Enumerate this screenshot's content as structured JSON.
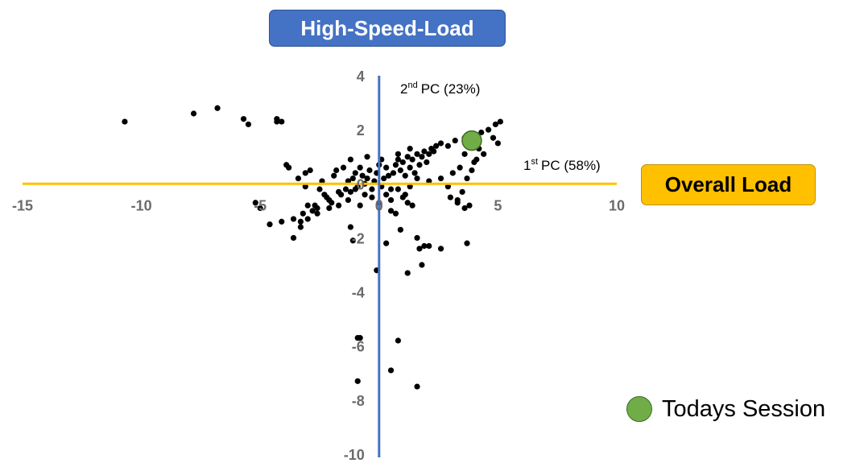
{
  "chart_data": {
    "type": "scatter",
    "title_box": "High-Speed-Load",
    "x_box": "Overall Load",
    "x_axis": {
      "pc": "1",
      "sup": "st",
      "label": "PC (58%)",
      "ticks": [
        -15,
        -10,
        -5,
        0,
        5,
        10
      ],
      "range": [
        -15,
        10
      ]
    },
    "y_axis": {
      "pc": "2",
      "sup": "nd",
      "label": "PC (23%)",
      "ticks": [
        4,
        2,
        0,
        -2,
        -4,
        -6,
        -8,
        -10
      ],
      "range": [
        -10,
        4
      ]
    },
    "grid": false,
    "colors": {
      "x_axis": "#ffc000",
      "y_axis": "#4472c4",
      "points": "#000000",
      "highlight": "#70ad47"
    },
    "series": [
      {
        "points": [
          [
            -10.7,
            2.3
          ],
          [
            -7.8,
            2.6
          ],
          [
            -6.8,
            2.8
          ],
          [
            -5.7,
            2.4
          ],
          [
            -5.5,
            2.2
          ],
          [
            -4.3,
            2.4
          ],
          [
            -4.3,
            2.3
          ],
          [
            -4.1,
            2.3
          ],
          [
            -3.9,
            0.7
          ],
          [
            -3.8,
            0.6
          ],
          [
            -3.6,
            -1.3
          ],
          [
            -3.6,
            -2.0
          ],
          [
            -3.4,
            0.2
          ],
          [
            -3.3,
            -1.4
          ],
          [
            -3.2,
            -1.1
          ],
          [
            -3.1,
            0.4
          ],
          [
            -3.1,
            -0.1
          ],
          [
            -3.0,
            -0.8
          ],
          [
            -2.9,
            0.5
          ],
          [
            -2.8,
            -1.0
          ],
          [
            -2.7,
            -0.8
          ],
          [
            -2.6,
            -0.9
          ],
          [
            -2.5,
            -0.2
          ],
          [
            -2.4,
            0.1
          ],
          [
            -2.3,
            -0.4
          ],
          [
            -2.2,
            -0.5
          ],
          [
            -2.1,
            -0.6
          ],
          [
            -2.0,
            -0.7
          ],
          [
            -1.9,
            0.3
          ],
          [
            -1.8,
            0.5
          ],
          [
            -1.7,
            -0.3
          ],
          [
            -1.6,
            -0.4
          ],
          [
            -1.5,
            0.6
          ],
          [
            -1.4,
            -0.2
          ],
          [
            -1.3,
            0.1
          ],
          [
            -1.2,
            -0.3
          ],
          [
            -1.1,
            0.2
          ],
          [
            -1.0,
            0.4
          ],
          [
            -0.9,
            -0.1
          ],
          [
            -0.8,
            0.6
          ],
          [
            -0.7,
            0.3
          ],
          [
            -0.6,
            0.0
          ],
          [
            -0.5,
            0.2
          ],
          [
            -0.4,
            0.5
          ],
          [
            -0.3,
            -0.2
          ],
          [
            -0.2,
            0.1
          ],
          [
            -0.1,
            0.4
          ],
          [
            0.0,
            0.7
          ],
          [
            0.1,
            -0.1
          ],
          [
            0.2,
            0.2
          ],
          [
            0.3,
            0.6
          ],
          [
            0.4,
            0.3
          ],
          [
            0.5,
            -0.2
          ],
          [
            0.6,
            0.4
          ],
          [
            0.7,
            0.7
          ],
          [
            0.8,
            0.9
          ],
          [
            0.9,
            0.5
          ],
          [
            1.0,
            0.8
          ],
          [
            1.1,
            0.3
          ],
          [
            1.2,
            1.0
          ],
          [
            1.3,
            0.6
          ],
          [
            1.4,
            0.9
          ],
          [
            1.5,
            0.4
          ],
          [
            1.6,
            1.1
          ],
          [
            1.7,
            0.7
          ],
          [
            1.8,
            1.0
          ],
          [
            1.9,
            1.2
          ],
          [
            2.0,
            0.8
          ],
          [
            2.1,
            1.1
          ],
          [
            2.2,
            1.3
          ],
          [
            2.3,
            1.2
          ],
          [
            2.4,
            1.4
          ],
          [
            -1.2,
            0.9
          ],
          [
            -0.5,
            1.0
          ],
          [
            0.1,
            0.9
          ],
          [
            0.8,
            1.1
          ],
          [
            1.3,
            1.3
          ],
          [
            2.6,
            1.5
          ],
          [
            2.9,
            1.4
          ],
          [
            3.2,
            1.6
          ],
          [
            3.6,
            1.7
          ],
          [
            3.8,
            1.5
          ],
          [
            4.1,
            1.8
          ],
          [
            4.3,
            1.9
          ],
          [
            4.6,
            2.0
          ],
          [
            4.9,
            2.2
          ],
          [
            5.1,
            2.3
          ],
          [
            4.8,
            1.7
          ],
          [
            5.0,
            1.5
          ],
          [
            4.2,
            1.3
          ],
          [
            4.4,
            1.1
          ],
          [
            4.1,
            0.9
          ],
          [
            3.6,
            1.1
          ],
          [
            3.4,
            0.6
          ],
          [
            3.1,
            0.4
          ],
          [
            3.0,
            -0.5
          ],
          [
            3.3,
            -0.6
          ],
          [
            3.5,
            -0.3
          ],
          [
            3.7,
            0.2
          ],
          [
            3.9,
            0.5
          ],
          [
            4.0,
            0.8
          ],
          [
            3.8,
            -0.8
          ],
          [
            3.6,
            -0.9
          ],
          [
            3.3,
            -0.7
          ],
          [
            2.9,
            -0.1
          ],
          [
            2.6,
            0.2
          ],
          [
            2.1,
            0.1
          ],
          [
            1.6,
            0.2
          ],
          [
            1.3,
            -0.1
          ],
          [
            1.1,
            -0.4
          ],
          [
            0.8,
            -0.2
          ],
          [
            0.5,
            -0.6
          ],
          [
            0.3,
            -0.4
          ],
          [
            0.0,
            -0.7
          ],
          [
            -0.3,
            -0.5
          ],
          [
            -0.6,
            -0.4
          ],
          [
            -0.8,
            -0.8
          ],
          [
            -1.0,
            -0.2
          ],
          [
            -1.3,
            -0.6
          ],
          [
            -1.7,
            -0.8
          ],
          [
            -2.1,
            -0.9
          ],
          [
            -2.6,
            -1.1
          ],
          [
            -3.0,
            -1.3
          ],
          [
            -3.3,
            -1.6
          ],
          [
            -4.1,
            -1.4
          ],
          [
            -4.6,
            -1.5
          ],
          [
            -5.2,
            -0.7
          ],
          [
            -5.0,
            -0.9
          ],
          [
            -1.2,
            -1.6
          ],
          [
            -1.1,
            -2.1
          ],
          [
            0.3,
            -2.2
          ],
          [
            0.5,
            -1.0
          ],
          [
            0.7,
            -1.1
          ],
          [
            0.9,
            -1.7
          ],
          [
            1.0,
            -0.5
          ],
          [
            1.2,
            -0.7
          ],
          [
            1.4,
            -0.8
          ],
          [
            1.6,
            -2.0
          ],
          [
            1.7,
            -2.4
          ],
          [
            1.9,
            -2.3
          ],
          [
            2.1,
            -2.3
          ],
          [
            2.6,
            -2.4
          ],
          [
            3.7,
            -2.2
          ],
          [
            1.8,
            -3.0
          ],
          [
            1.2,
            -3.3
          ],
          [
            -0.1,
            -3.2
          ],
          [
            -0.8,
            -5.7
          ],
          [
            -0.9,
            -5.7
          ],
          [
            0.8,
            -5.8
          ],
          [
            0.5,
            -6.9
          ],
          [
            -0.9,
            -7.3
          ],
          [
            1.6,
            -7.5
          ]
        ]
      },
      {
        "name": "Todays Session",
        "points": [
          [
            3.9,
            1.6
          ]
        ]
      }
    ],
    "legend": {
      "label": "Todays Session",
      "placement": "bottom-right"
    }
  }
}
